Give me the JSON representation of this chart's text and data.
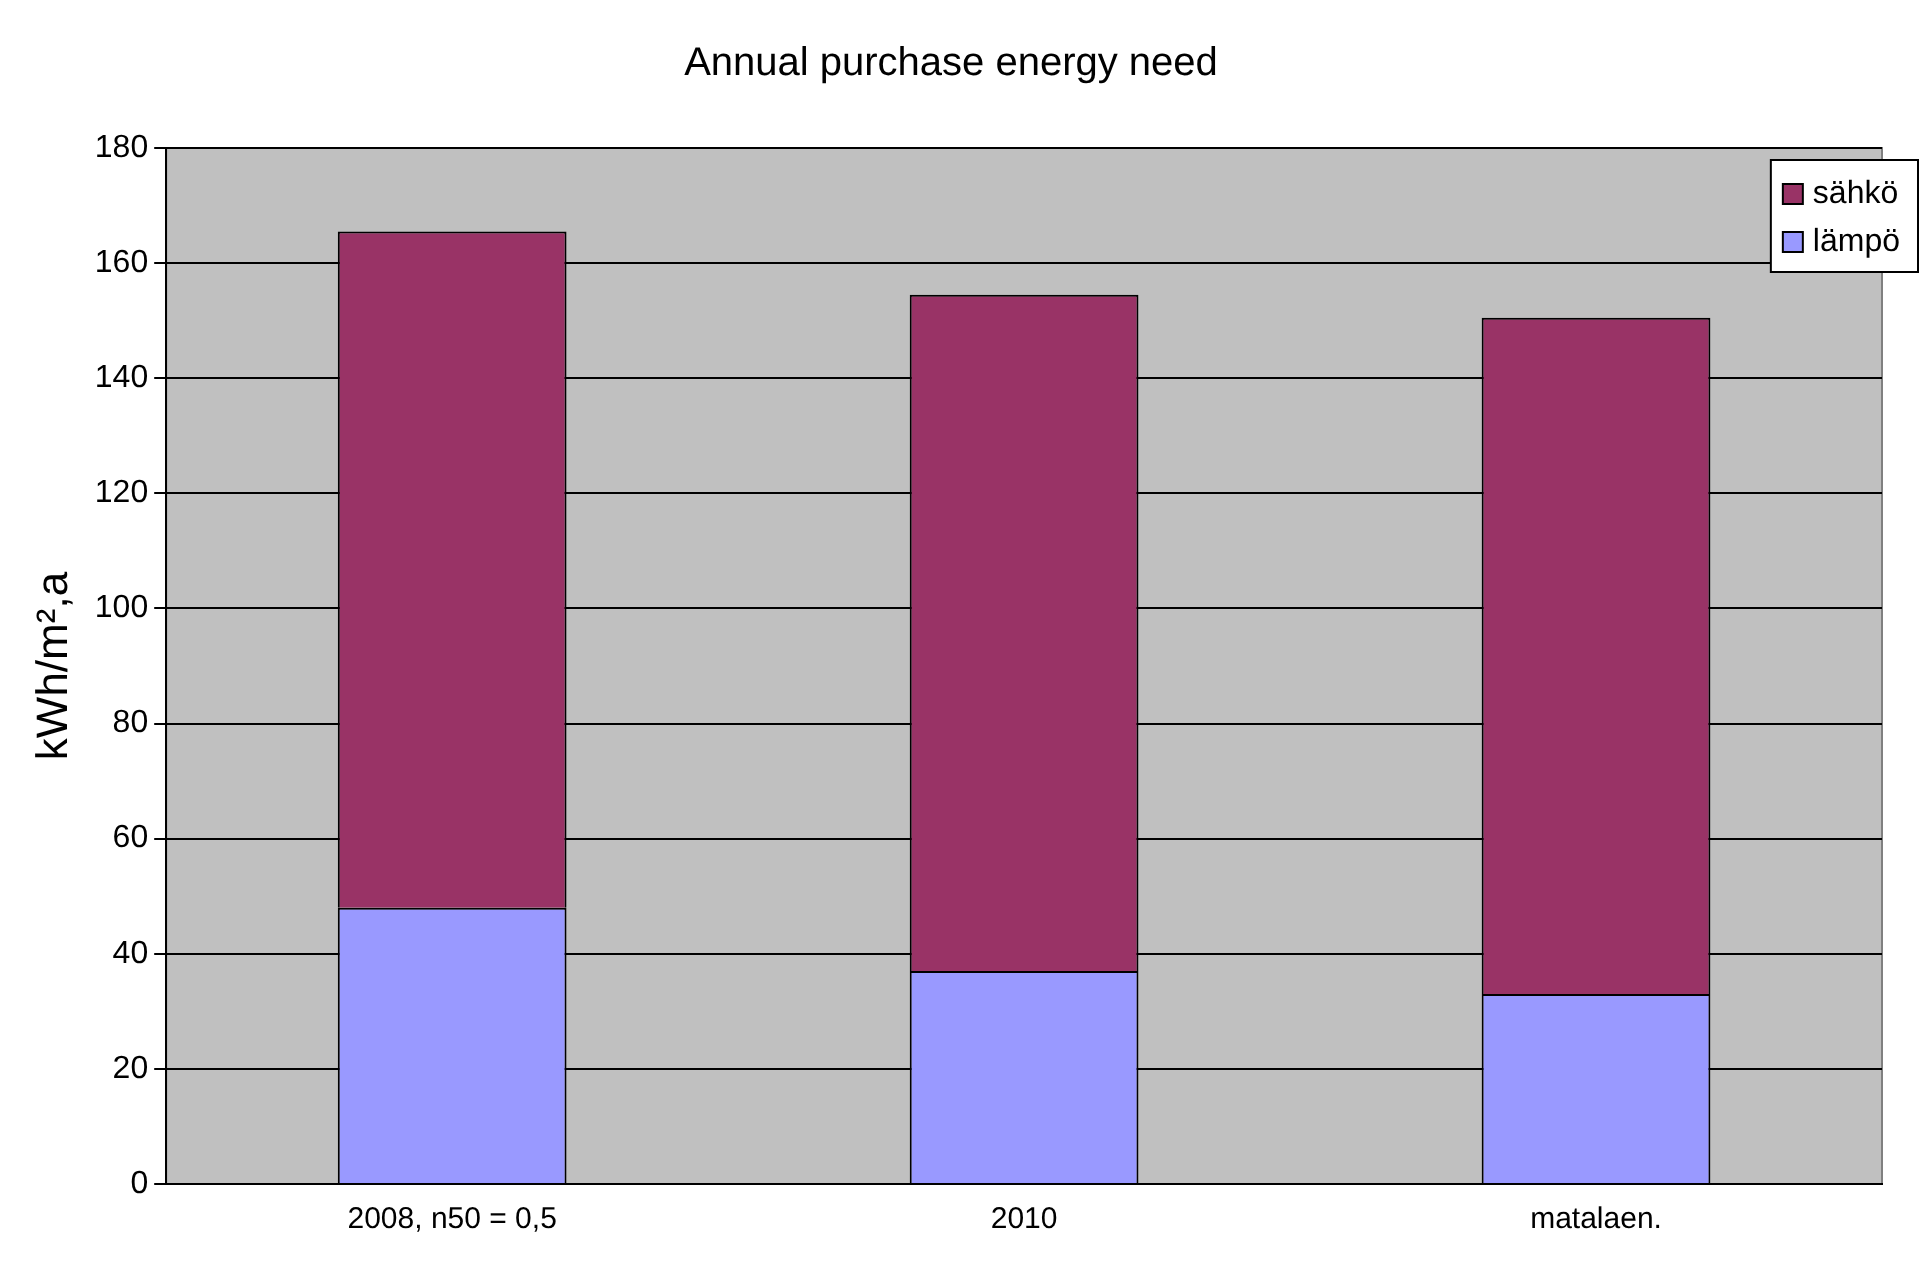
{
  "chart_data": {
    "type": "bar",
    "title": "Annual purchase energy need",
    "ylabel": "kWh/m²,a",
    "categories": [
      "2008, n50 = 0,5",
      "2010",
      "matalaen."
    ],
    "series": [
      {
        "name": "lämpö",
        "color": "#9999ff",
        "values": [
          48,
          37,
          33
        ]
      },
      {
        "name": "sähkö",
        "color": "#993366",
        "values": [
          117.5,
          117.5,
          117.5
        ]
      }
    ],
    "stacked": true,
    "ylim": [
      0,
      180
    ],
    "yticks": [
      0,
      20,
      40,
      60,
      80,
      100,
      120,
      140,
      160,
      180
    ],
    "grid": "y",
    "legend": "top right"
  }
}
